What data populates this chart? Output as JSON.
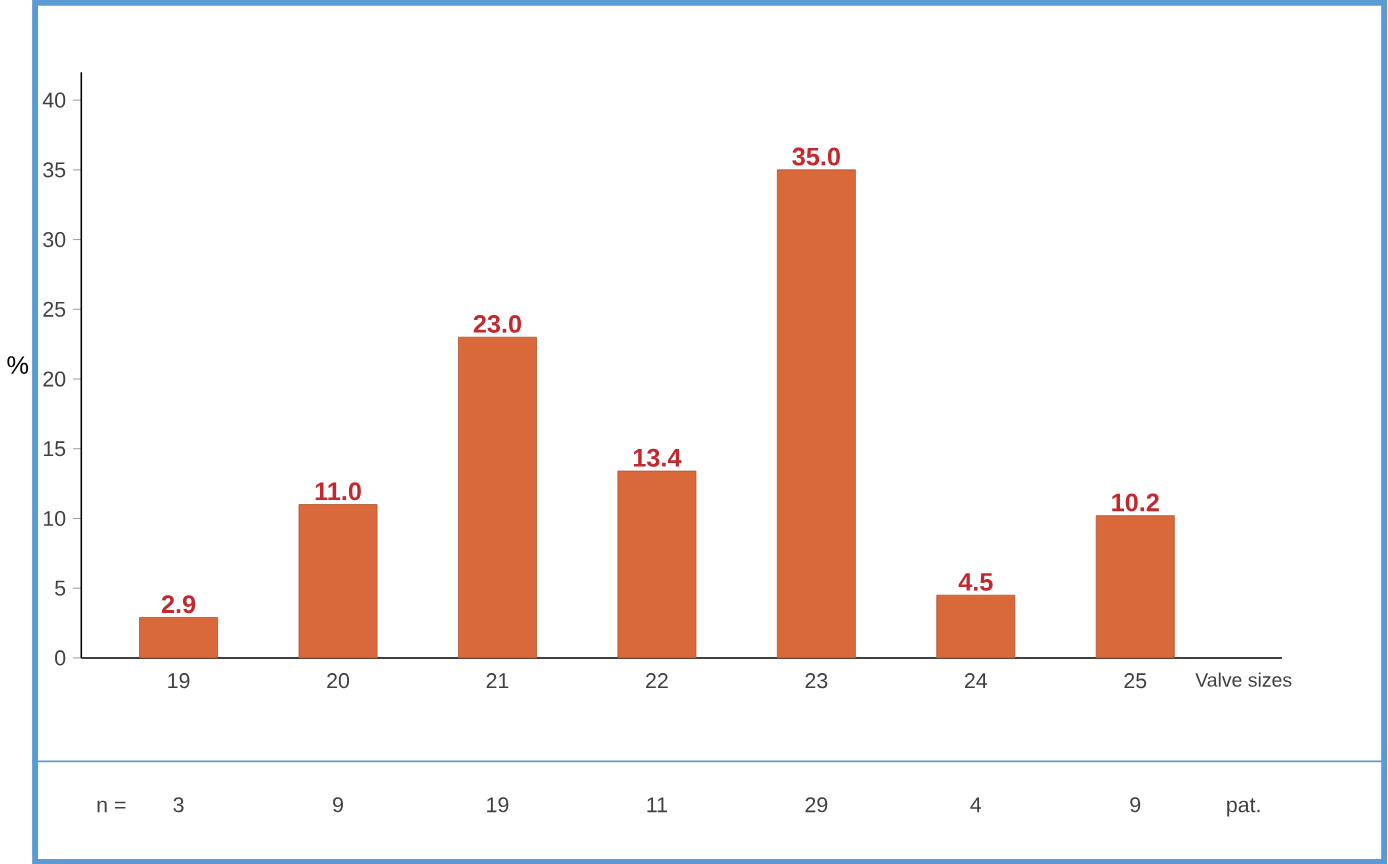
{
  "chart_data": {
    "type": "bar",
    "categories": [
      "19",
      "20",
      "21",
      "22",
      "23",
      "24",
      "25"
    ],
    "values": [
      2.9,
      11.0,
      23.0,
      13.4,
      35.0,
      4.5,
      10.2
    ],
    "value_labels": [
      "2.9",
      "11.0",
      "23.0",
      "13.4",
      "35.0",
      "4.5",
      "10.2"
    ],
    "color": "#d9693b",
    "ylim": [
      0,
      42
    ],
    "yticks": [
      0,
      5,
      10,
      15,
      20,
      25,
      30,
      35,
      40
    ],
    "ylabel": "%",
    "xlabel": "Valve sizes",
    "annotations": [
      "n =",
      "3",
      "9",
      "19",
      "11",
      "29",
      "4",
      "9",
      "pat."
    ],
    "grid": false
  }
}
